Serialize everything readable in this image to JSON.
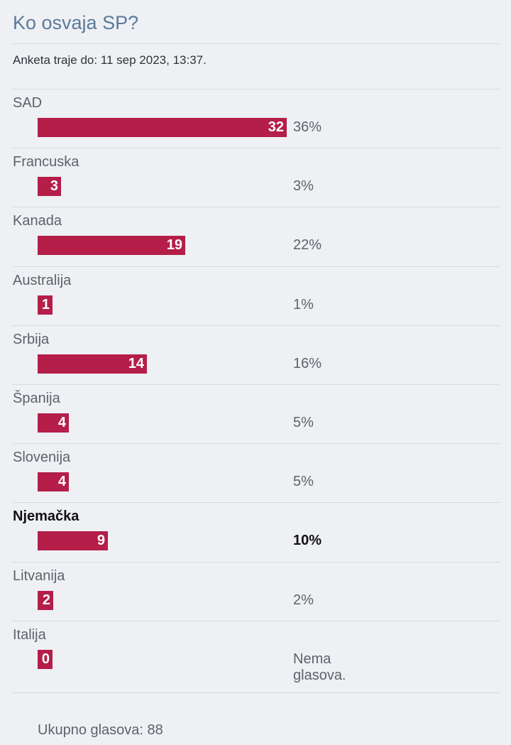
{
  "poll": {
    "title": "Ko osvaja SP?",
    "deadline": "Anketa traje do: 11 sep 2023, 13:37.",
    "options": [
      {
        "label": "SAD",
        "votes": "32",
        "percent": "36%",
        "share": 0.3636,
        "selected": false
      },
      {
        "label": "Francuska",
        "votes": "3",
        "percent": "3%",
        "share": 0.0341,
        "selected": false
      },
      {
        "label": "Kanada",
        "votes": "19",
        "percent": "22%",
        "share": 0.2159,
        "selected": false
      },
      {
        "label": "Australija",
        "votes": "1",
        "percent": "1%",
        "share": 0.0114,
        "selected": false
      },
      {
        "label": "Srbija",
        "votes": "14",
        "percent": "16%",
        "share": 0.1591,
        "selected": false
      },
      {
        "label": "Španija",
        "votes": "4",
        "percent": "5%",
        "share": 0.0455,
        "selected": false
      },
      {
        "label": "Slovenija",
        "votes": "4",
        "percent": "5%",
        "share": 0.0455,
        "selected": false
      },
      {
        "label": "Njemačka",
        "votes": "9",
        "percent": "10%",
        "share": 0.1023,
        "selected": true
      },
      {
        "label": "Litvanija",
        "votes": "2",
        "percent": "2%",
        "share": 0.0227,
        "selected": false
      },
      {
        "label": "Italija",
        "votes": "0",
        "percent": "Nema glasova.",
        "share": 0,
        "selected": false
      }
    ],
    "total": "Ukupno glasova: 88"
  },
  "colors": {
    "bar": "#b41e49",
    "title": "#5b7a9b",
    "background": "#eef0f4"
  }
}
